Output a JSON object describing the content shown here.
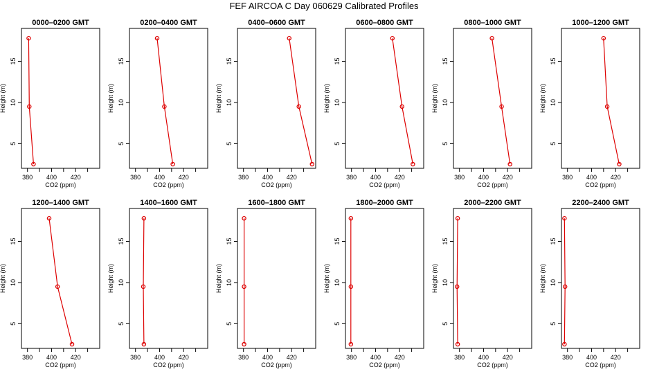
{
  "title": "FEF AIRCOA C  Day 060629  Calibrated Profiles",
  "chart_data": {
    "type": "line",
    "shared_axes": {
      "xlabel": "CO2 (ppm)",
      "ylabel": "Height (m)",
      "xlim": [
        375,
        440
      ],
      "ylim": [
        2,
        19
      ],
      "xticks": [
        380,
        400,
        420
      ],
      "yticks": [
        5,
        10,
        15
      ],
      "grid": false,
      "color": "#dd0000"
    },
    "panels": [
      {
        "title": "0000–0200 GMT",
        "points": [
          [
            381,
            17.8
          ],
          [
            381.5,
            9.5
          ],
          [
            385,
            2.5
          ]
        ]
      },
      {
        "title": "0200–0400 GMT",
        "points": [
          [
            398,
            17.8
          ],
          [
            404,
            9.5
          ],
          [
            411,
            2.5
          ]
        ]
      },
      {
        "title": "0400–0600 GMT",
        "points": [
          [
            418,
            17.8
          ],
          [
            426,
            9.5
          ],
          [
            437,
            2.5
          ]
        ]
      },
      {
        "title": "0600–0800 GMT",
        "points": [
          [
            414,
            17.8
          ],
          [
            422,
            9.5
          ],
          [
            431,
            2.5
          ]
        ]
      },
      {
        "title": "0800–1000 GMT",
        "points": [
          [
            407,
            17.8
          ],
          [
            415,
            9.5
          ],
          [
            422,
            2.5
          ]
        ]
      },
      {
        "title": "1000–1200 GMT",
        "points": [
          [
            410,
            17.8
          ],
          [
            413,
            9.5
          ],
          [
            423,
            2.5
          ]
        ]
      },
      {
        "title": "1200–1400 GMT",
        "points": [
          [
            398,
            17.8
          ],
          [
            405,
            9.5
          ],
          [
            417,
            2.5
          ]
        ]
      },
      {
        "title": "1400–1600 GMT",
        "points": [
          [
            387,
            17.8
          ],
          [
            386.5,
            9.5
          ],
          [
            387,
            2.5
          ]
        ]
      },
      {
        "title": "1600–1800 GMT",
        "points": [
          [
            380.5,
            17.8
          ],
          [
            380.5,
            9.5
          ],
          [
            380.5,
            2.5
          ]
        ]
      },
      {
        "title": "1800–2000 GMT",
        "points": [
          [
            379.5,
            17.8
          ],
          [
            379.5,
            9.5
          ],
          [
            379.5,
            2.5
          ]
        ]
      },
      {
        "title": "2000–2200 GMT",
        "points": [
          [
            378.5,
            17.8
          ],
          [
            378,
            9.5
          ],
          [
            378.5,
            2.5
          ]
        ]
      },
      {
        "title": "2200–2400 GMT",
        "points": [
          [
            377.5,
            17.8
          ],
          [
            378,
            9.5
          ],
          [
            377.5,
            2.5
          ]
        ]
      }
    ]
  }
}
